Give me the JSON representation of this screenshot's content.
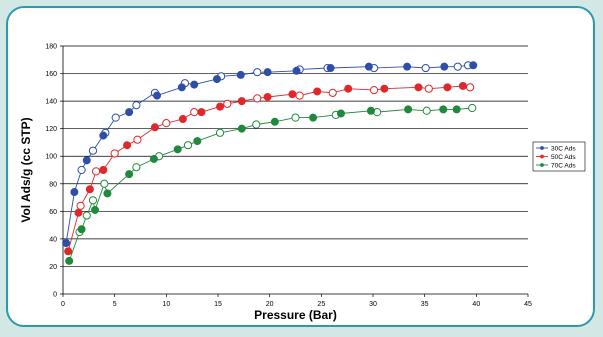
{
  "chart_data": {
    "type": "scatter",
    "title": "",
    "xlabel": "Pressure (Bar)",
    "ylabel": "Vol Ads/g (cc STP)",
    "xlim": [
      0,
      45
    ],
    "ylim": [
      0,
      180
    ],
    "xticks": [
      0,
      5,
      10,
      15,
      20,
      25,
      30,
      35,
      40,
      45
    ],
    "yticks": [
      0,
      20,
      40,
      60,
      80,
      100,
      120,
      140,
      160,
      180
    ],
    "grid": "horizontal",
    "legend_position": "right",
    "series": [
      {
        "name": "30C Ads",
        "color": "#2e4ea8",
        "adsorption": [
          [
            0.3,
            37
          ],
          [
            1.1,
            74
          ],
          [
            2.3,
            97
          ],
          [
            3.9,
            115
          ],
          [
            6.4,
            132
          ],
          [
            9.1,
            144
          ],
          [
            11.5,
            150
          ],
          [
            12.7,
            152
          ],
          [
            14.9,
            156
          ],
          [
            17.2,
            159
          ],
          [
            19.8,
            161
          ],
          [
            22.6,
            162
          ],
          [
            25.9,
            164
          ],
          [
            29.6,
            165
          ],
          [
            33.3,
            165
          ],
          [
            36.9,
            165
          ],
          [
            39.7,
            166
          ]
        ],
        "desorption": [
          [
            39.2,
            166
          ],
          [
            38.2,
            165
          ],
          [
            35.1,
            164
          ],
          [
            30.1,
            164
          ],
          [
            25.6,
            164
          ],
          [
            22.9,
            163
          ],
          [
            18.8,
            161
          ],
          [
            15.3,
            158
          ],
          [
            11.8,
            153
          ],
          [
            8.9,
            146
          ],
          [
            7.1,
            137
          ],
          [
            5.1,
            128
          ],
          [
            4.1,
            117
          ],
          [
            2.9,
            104
          ],
          [
            1.8,
            90
          ]
        ]
      },
      {
        "name": "50C Ads",
        "color": "#e0282a",
        "adsorption": [
          [
            0.5,
            31
          ],
          [
            1.5,
            59
          ],
          [
            2.6,
            76
          ],
          [
            3.9,
            90
          ],
          [
            6.2,
            108
          ],
          [
            8.9,
            121
          ],
          [
            11.6,
            127
          ],
          [
            13.4,
            132
          ],
          [
            15.2,
            136
          ],
          [
            17.3,
            140
          ],
          [
            19.8,
            143
          ],
          [
            22.2,
            145
          ],
          [
            24.6,
            147
          ],
          [
            27.6,
            149
          ],
          [
            31.1,
            149
          ],
          [
            34.4,
            150
          ],
          [
            37.2,
            150
          ],
          [
            38.7,
            151
          ]
        ],
        "desorption": [
          [
            39.4,
            150
          ],
          [
            35.4,
            149
          ],
          [
            30.1,
            148
          ],
          [
            26.1,
            146
          ],
          [
            22.9,
            144
          ],
          [
            18.8,
            142
          ],
          [
            15.9,
            138
          ],
          [
            12.7,
            132
          ],
          [
            10.0,
            124
          ],
          [
            7.2,
            112
          ],
          [
            5.0,
            102
          ],
          [
            3.2,
            89
          ],
          [
            1.7,
            64
          ]
        ]
      },
      {
        "name": "70C Ads",
        "color": "#1f8a3c",
        "adsorption": [
          [
            0.6,
            24
          ],
          [
            1.8,
            47
          ],
          [
            3.1,
            61
          ],
          [
            4.3,
            73
          ],
          [
            6.4,
            87
          ],
          [
            8.8,
            98
          ],
          [
            11.1,
            105
          ],
          [
            13.0,
            111
          ],
          [
            17.3,
            120
          ],
          [
            20.5,
            125
          ],
          [
            24.2,
            128
          ],
          [
            26.9,
            131
          ],
          [
            29.8,
            133
          ],
          [
            33.4,
            134
          ],
          [
            36.8,
            134
          ],
          [
            38.1,
            134
          ]
        ],
        "desorption": [
          [
            39.6,
            135
          ],
          [
            35.2,
            133
          ],
          [
            30.4,
            132
          ],
          [
            26.4,
            130
          ],
          [
            22.5,
            128
          ],
          [
            18.7,
            123
          ],
          [
            15.2,
            117
          ],
          [
            12.1,
            108
          ],
          [
            9.3,
            100
          ],
          [
            7.1,
            92
          ],
          [
            4.0,
            80
          ],
          [
            2.9,
            68
          ],
          [
            2.3,
            57
          ],
          [
            1.6,
            45
          ]
        ]
      }
    ]
  }
}
